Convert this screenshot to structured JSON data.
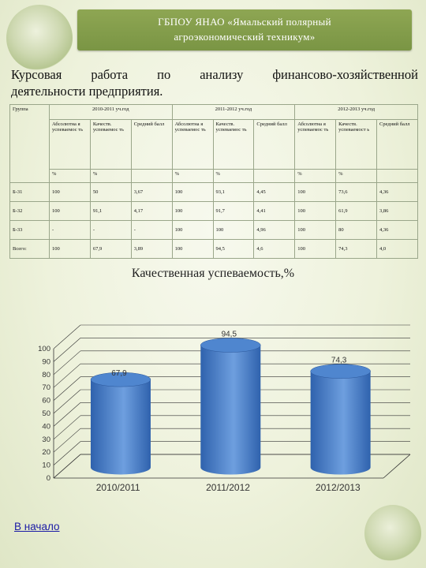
{
  "header": {
    "line1": "ГБПОУ ЯНАО «Ямальский полярный",
    "line2": "агроэкономический техникум»"
  },
  "page_title": {
    "words": [
      "Курсовая",
      "работа",
      "по",
      "анализу",
      "финансово-хозяйственной"
    ],
    "line2": "деятельности предприятия."
  },
  "table": {
    "group_header": "Группа",
    "years": [
      "2010-2011 уч.год",
      "2011-2012 уч.год",
      "2012-2013 уч.год"
    ],
    "subheaders": [
      {
        "abs": "Абсолютна я успеваемос ть",
        "qual": "Качеств. успеваемос ть",
        "avg": "Средний балл"
      },
      {
        "abs": "Абсолютна я успеваемос ть",
        "qual": "Качеств. успеваемос ть",
        "avg": "Средний балл"
      },
      {
        "abs": "Абсолютна я успеваемос ть",
        "qual": "Качеств. успеваемост ь",
        "avg": "Средний балл"
      }
    ],
    "unit": "%",
    "rows": [
      {
        "group": "Б-31",
        "values": [
          "100",
          "50",
          "3,67",
          "100",
          "93,1",
          "4,45",
          "100",
          "73,6",
          "4,36"
        ]
      },
      {
        "group": "Б-32",
        "values": [
          "100",
          "91,1",
          "4,17",
          "100",
          "91,7",
          "4,41",
          "100",
          "61,9",
          "3,86"
        ]
      },
      {
        "group": "Б-33",
        "values": [
          "-",
          "-",
          "-",
          "100",
          "100",
          "4,96",
          "100",
          "80",
          "4,36"
        ]
      },
      {
        "group": "Всего:",
        "values": [
          "100",
          "67,9",
          "3,89",
          "100",
          "94,5",
          "4,6",
          "100",
          "74,3",
          "4,0"
        ]
      }
    ]
  },
  "chart_data": {
    "type": "bar",
    "title": "Качественная успеваемость,%",
    "categories": [
      "2010/2011",
      "2011/2012",
      "2012/2013"
    ],
    "values": [
      67.9,
      94.5,
      74.3
    ],
    "value_labels": [
      "67,9",
      "94,5",
      "74,3"
    ],
    "ylim": [
      0,
      100
    ],
    "yticks": [
      0,
      10,
      20,
      30,
      40,
      50,
      60,
      70,
      80,
      90,
      100
    ],
    "bar_style": "3d-cylinder",
    "colors": {
      "bar": "#2f62ad",
      "bar_top": "#4f86cf",
      "bar_highlight": "#6e9fdf",
      "grid": "#333333"
    }
  },
  "footer": {
    "back_link": "В начало"
  }
}
